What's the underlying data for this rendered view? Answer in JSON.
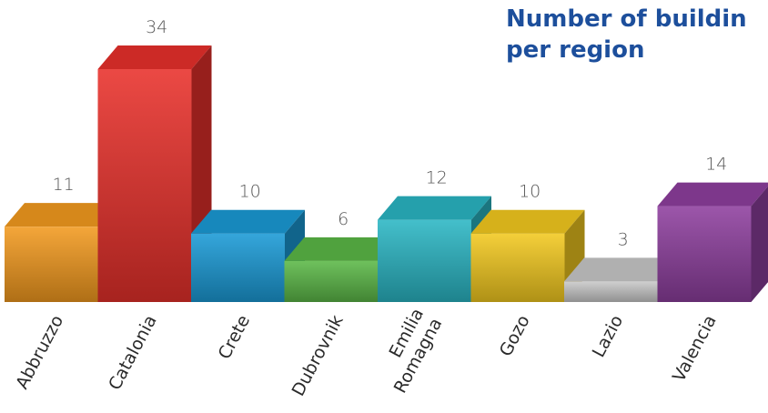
{
  "chart_data": {
    "type": "bar",
    "title_lines": [
      "Number of buildin",
      "per region"
    ],
    "categories": [
      "Abbruzzo",
      "Catalonia",
      "Crete",
      "Dubrovnik",
      "Emilia Romagna",
      "Gozo",
      "Lazio",
      "Valencia"
    ],
    "category_lines": [
      [
        "Abbruzzo"
      ],
      [
        "Catalonia"
      ],
      [
        "Crete"
      ],
      [
        "Dubrovnik"
      ],
      [
        "Emilia",
        "Romagna"
      ],
      [
        "Gozo"
      ],
      [
        "Lazio"
      ],
      [
        "Valencia"
      ]
    ],
    "values": [
      11,
      34,
      10,
      6,
      12,
      10,
      3,
      14
    ],
    "xlabel": "",
    "ylabel": "",
    "ylim": [
      0,
      34
    ],
    "grid": false,
    "legend": "none",
    "colors": [
      "#f39a1f",
      "#e8302b",
      "#1a9ad6",
      "#5bb847",
      "#2ab6c4",
      "#f3c91f",
      "#c8c8c8",
      "#8e3f9e"
    ]
  }
}
